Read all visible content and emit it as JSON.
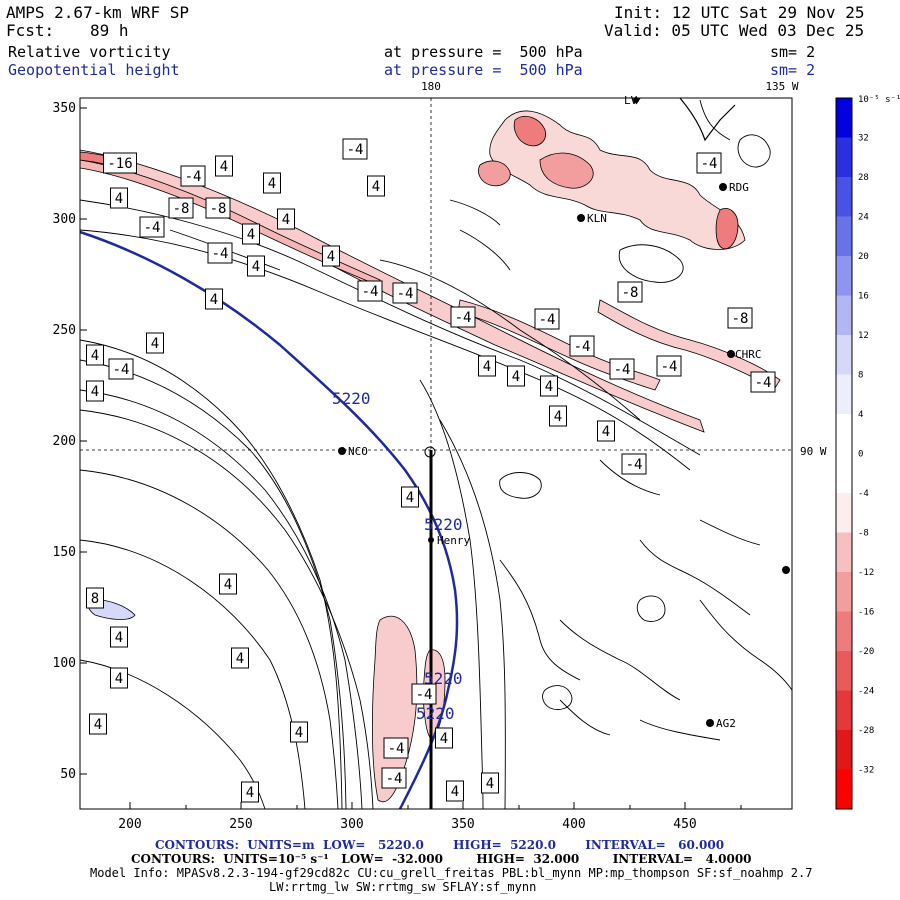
{
  "header": {
    "model": "AMPS 2.67-km WRF SP",
    "init": "Init: 12 UTC Sat 29 Nov 25",
    "fcst_label": "Fcst:",
    "fcst_value": "89 h",
    "valid": "Valid: 05 UTC Wed 03 Dec 25",
    "field1": "Relative vorticity",
    "field1_pressure": "at pressure =  500 hPa",
    "field1_sm": "sm= 2",
    "field2": "Geopotential height",
    "field2_pressure": "at pressure =  500 hPa",
    "field2_sm": "sm= 2"
  },
  "map": {
    "lon_top_180": "180",
    "lon_top_135w": "135 W",
    "lon_right_90w": "90 W",
    "x_ticks": [
      "200",
      "250",
      "300",
      "350",
      "400",
      "450"
    ],
    "y_ticks": [
      "350",
      "300",
      "250",
      "200",
      "150",
      "100",
      "50"
    ],
    "stations": [
      {
        "name": "RDG"
      },
      {
        "name": "KLN"
      },
      {
        "name": "CHRC"
      },
      {
        "name": "NCO"
      },
      {
        "name": "Henry"
      },
      {
        "name": "AG2"
      },
      {
        "name": "LV"
      }
    ],
    "contour_labels_height": [
      "5220",
      "5220",
      "5220",
      "5220"
    ],
    "contour_labels_vort": [
      "-16",
      "4",
      "-4",
      "4",
      "-4",
      "4",
      "4",
      "-8",
      "-8",
      "4",
      "-4",
      "-4",
      "4",
      "4",
      "-4",
      "-4",
      "-4",
      "-4",
      "-4",
      "-8",
      "-8",
      "-4",
      "4",
      "4",
      "4",
      "4",
      "-4",
      "4",
      "4",
      "4",
      "4",
      "4",
      "-4",
      "-4",
      "4",
      "4",
      "8",
      "4",
      "4",
      "4",
      "4",
      "4",
      "-4",
      "-4",
      "-4",
      "-4",
      "-4",
      "4",
      "4",
      "4",
      "4",
      "4",
      "4"
    ]
  },
  "colorbar": {
    "unit": "10⁻⁵ s⁻¹",
    "labels": [
      "32",
      "28",
      "24",
      "20",
      "16",
      "12",
      "8",
      "4",
      "0",
      "-4",
      "-8",
      "-12",
      "-16",
      "-20",
      "-24",
      "-28",
      "-32"
    ],
    "colors": [
      "#0000e0",
      "#2a30e2",
      "#4a52e6",
      "#6a72ea",
      "#8e94ef",
      "#b2b6f4",
      "#d6d8f9",
      "#ffffff",
      "#ffffff",
      "#fbe2e2",
      "#f7c0c0",
      "#f29e9e",
      "#ee7c7c",
      "#ea5a5a",
      "#e63838",
      "#e21818",
      "#ff0000"
    ]
  },
  "footer": {
    "height_contours": "CONTOURS:  UNITS=m  LOW=   5220.0       HIGH=  5220.0       INTERVAL=   60.000",
    "vort_contours": "CONTOURS:  UNITS=10⁻⁵ s⁻¹   LOW=  -32.000        HIGH=  32.000        INTERVAL=   4.0000",
    "model_info_1": "Model Info: MPASv8.2.3-194-gf29cd82c CU:cu_grell_freitas PBL:bl_mynn MP:mp_thompson SF:sf_noahmp 2.7",
    "model_info_2": "LW:rrtmg_lw SW:rrtmg_sw SFLAY:sf_mynn"
  }
}
